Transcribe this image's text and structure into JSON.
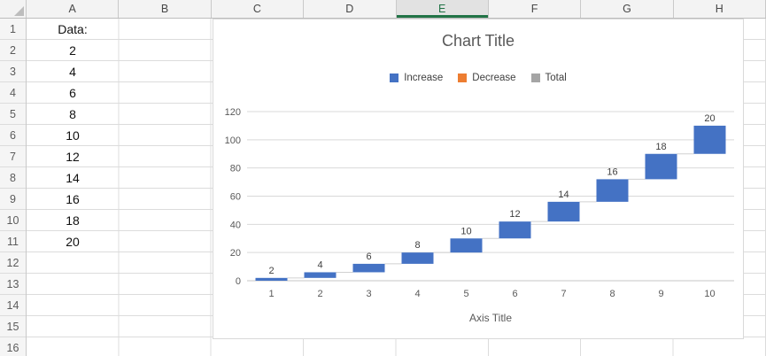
{
  "spreadsheet": {
    "column_headers": [
      "A",
      "B",
      "C",
      "D",
      "E",
      "F",
      "G",
      "H"
    ],
    "selected_column": "E",
    "row_headers": [
      "1",
      "2",
      "3",
      "4",
      "5",
      "6",
      "7",
      "8",
      "9",
      "10",
      "11",
      "12",
      "13",
      "14",
      "15",
      "16"
    ],
    "column_a_cells": [
      "Data:",
      "2",
      "4",
      "6",
      "8",
      "10",
      "12",
      "14",
      "16",
      "18",
      "20"
    ]
  },
  "chart": {
    "legend": [
      {
        "label": "Increase",
        "color": "#4472C4"
      },
      {
        "label": "Decrease",
        "color": "#ED7D31"
      },
      {
        "label": "Total",
        "color": "#A5A5A5"
      }
    ]
  },
  "chart_data": {
    "type": "bar",
    "subtype": "waterfall",
    "title": "Chart Title",
    "xlabel": "Axis Title",
    "ylabel": "",
    "categories": [
      "1",
      "2",
      "3",
      "4",
      "5",
      "6",
      "7",
      "8",
      "9",
      "10"
    ],
    "values": [
      2,
      4,
      6,
      8,
      10,
      12,
      14,
      16,
      18,
      20
    ],
    "cumulative": [
      2,
      6,
      12,
      20,
      30,
      42,
      56,
      72,
      90,
      110
    ],
    "data_labels": [
      "2",
      "4",
      "6",
      "8",
      "10",
      "12",
      "14",
      "16",
      "18",
      "20"
    ],
    "ylim": [
      0,
      120
    ],
    "yticks": [
      0,
      20,
      40,
      60,
      80,
      100,
      120
    ],
    "grid": true,
    "legend_position": "top",
    "colors": {
      "increase": "#4472C4",
      "decrease": "#ED7D31",
      "total": "#A5A5A5",
      "gridline": "#D9D9D9",
      "axis_line": "#C6C6C6",
      "connector": "#D0D0D0",
      "axis_text": "#595959",
      "label_text": "#404040",
      "title_text": "#595959"
    }
  }
}
